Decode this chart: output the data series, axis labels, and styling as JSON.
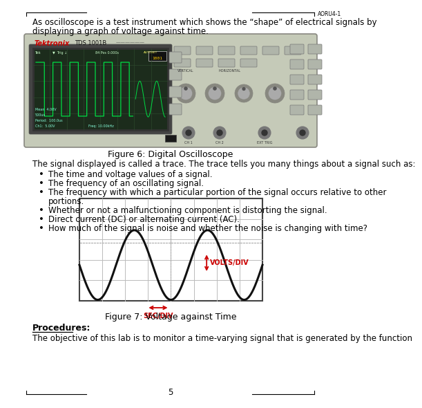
{
  "title_lines": [
    "As oscilloscope is a test instrument which shows the “shape” of electrical signals by",
    "displaying a graph of voltage against time."
  ],
  "fig6_caption": "Figure 6: Digital Oscilloscope",
  "body_text": "The signal displayed is called a trace. The trace tells you many things about a signal such as:",
  "bullets": [
    [
      "The time and voltage values of a signal.",
      false
    ],
    [
      "The frequency of an oscillating signal.",
      false
    ],
    [
      "The frequency with which a particular portion of the signal occurs relative to other",
      true
    ],
    [
      "Whether or not a malfunctioning component is distorting the signal.",
      false
    ],
    [
      "Direct current (DC) or alternating current (AC).",
      false
    ],
    [
      "How much of the signal is noise and whether the noise is changing with time?",
      false
    ]
  ],
  "bullet_continuation": "portions.",
  "fig7_caption": "Figure 7: Voltage against Time",
  "procedures_header": "Procedures:",
  "procedures_text": "The objective of this lab is to monitor a time-varying signal that is generated by the function",
  "page_number": "5",
  "corner_label": "AORU4-1",
  "sec_div_label": "SEC/DIV",
  "volts_div_label": "VOLTS/DIV",
  "background_color": "#ffffff",
  "text_color": "#000000",
  "red_color": "#cc0000",
  "font_size_body": 8.5,
  "font_size_caption": 9,
  "osc_body_color": "#c5cab8",
  "osc_border_color": "#888880",
  "screen_bg": "#1c2c1c",
  "screen_grid_color": "#2e4e2e",
  "wave_color_screen": "#00dd44",
  "sine_color": "#111111",
  "grid_color": "#bbbbbb",
  "dot_color": "#aaaaaa"
}
